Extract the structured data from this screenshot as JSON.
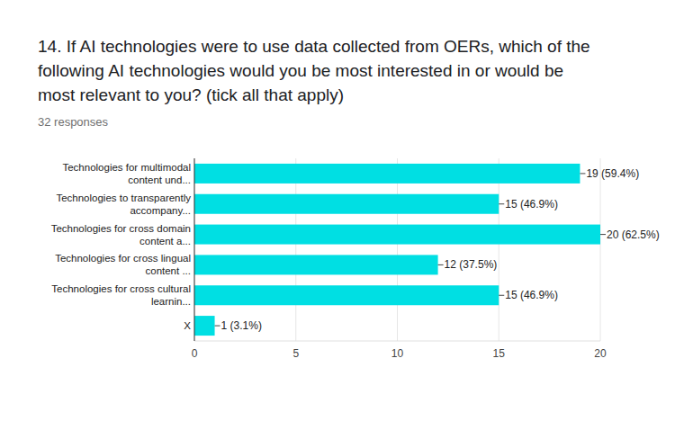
{
  "chart_data": {
    "type": "bar",
    "orientation": "horizontal",
    "title": "14. If AI technologies were to use data collected from OERs, which of the following AI technologies would you be most interested in or would be most relevant to you? (tick all that apply)",
    "subtitle": "32 responses",
    "categories": [
      "Technologies for multimodal content und...",
      "Technologies to transparently accompany...",
      "Technologies for cross domain content a...",
      "Technologies for cross lingual content ...",
      "Technologies for cross cultural learnin...",
      "X"
    ],
    "values": [
      19,
      15,
      20,
      12,
      15,
      1
    ],
    "value_labels": [
      "19 (59.4%)",
      "15 (46.9%)",
      "20 (62.5%)",
      "12 (37.5%)",
      "15 (46.9%)",
      "1 (3.1%)"
    ],
    "color": "#00dfe3",
    "xlim": [
      0,
      20
    ],
    "xticks": [
      0,
      5,
      10,
      15,
      20
    ],
    "grid": true,
    "data_labels": true
  }
}
